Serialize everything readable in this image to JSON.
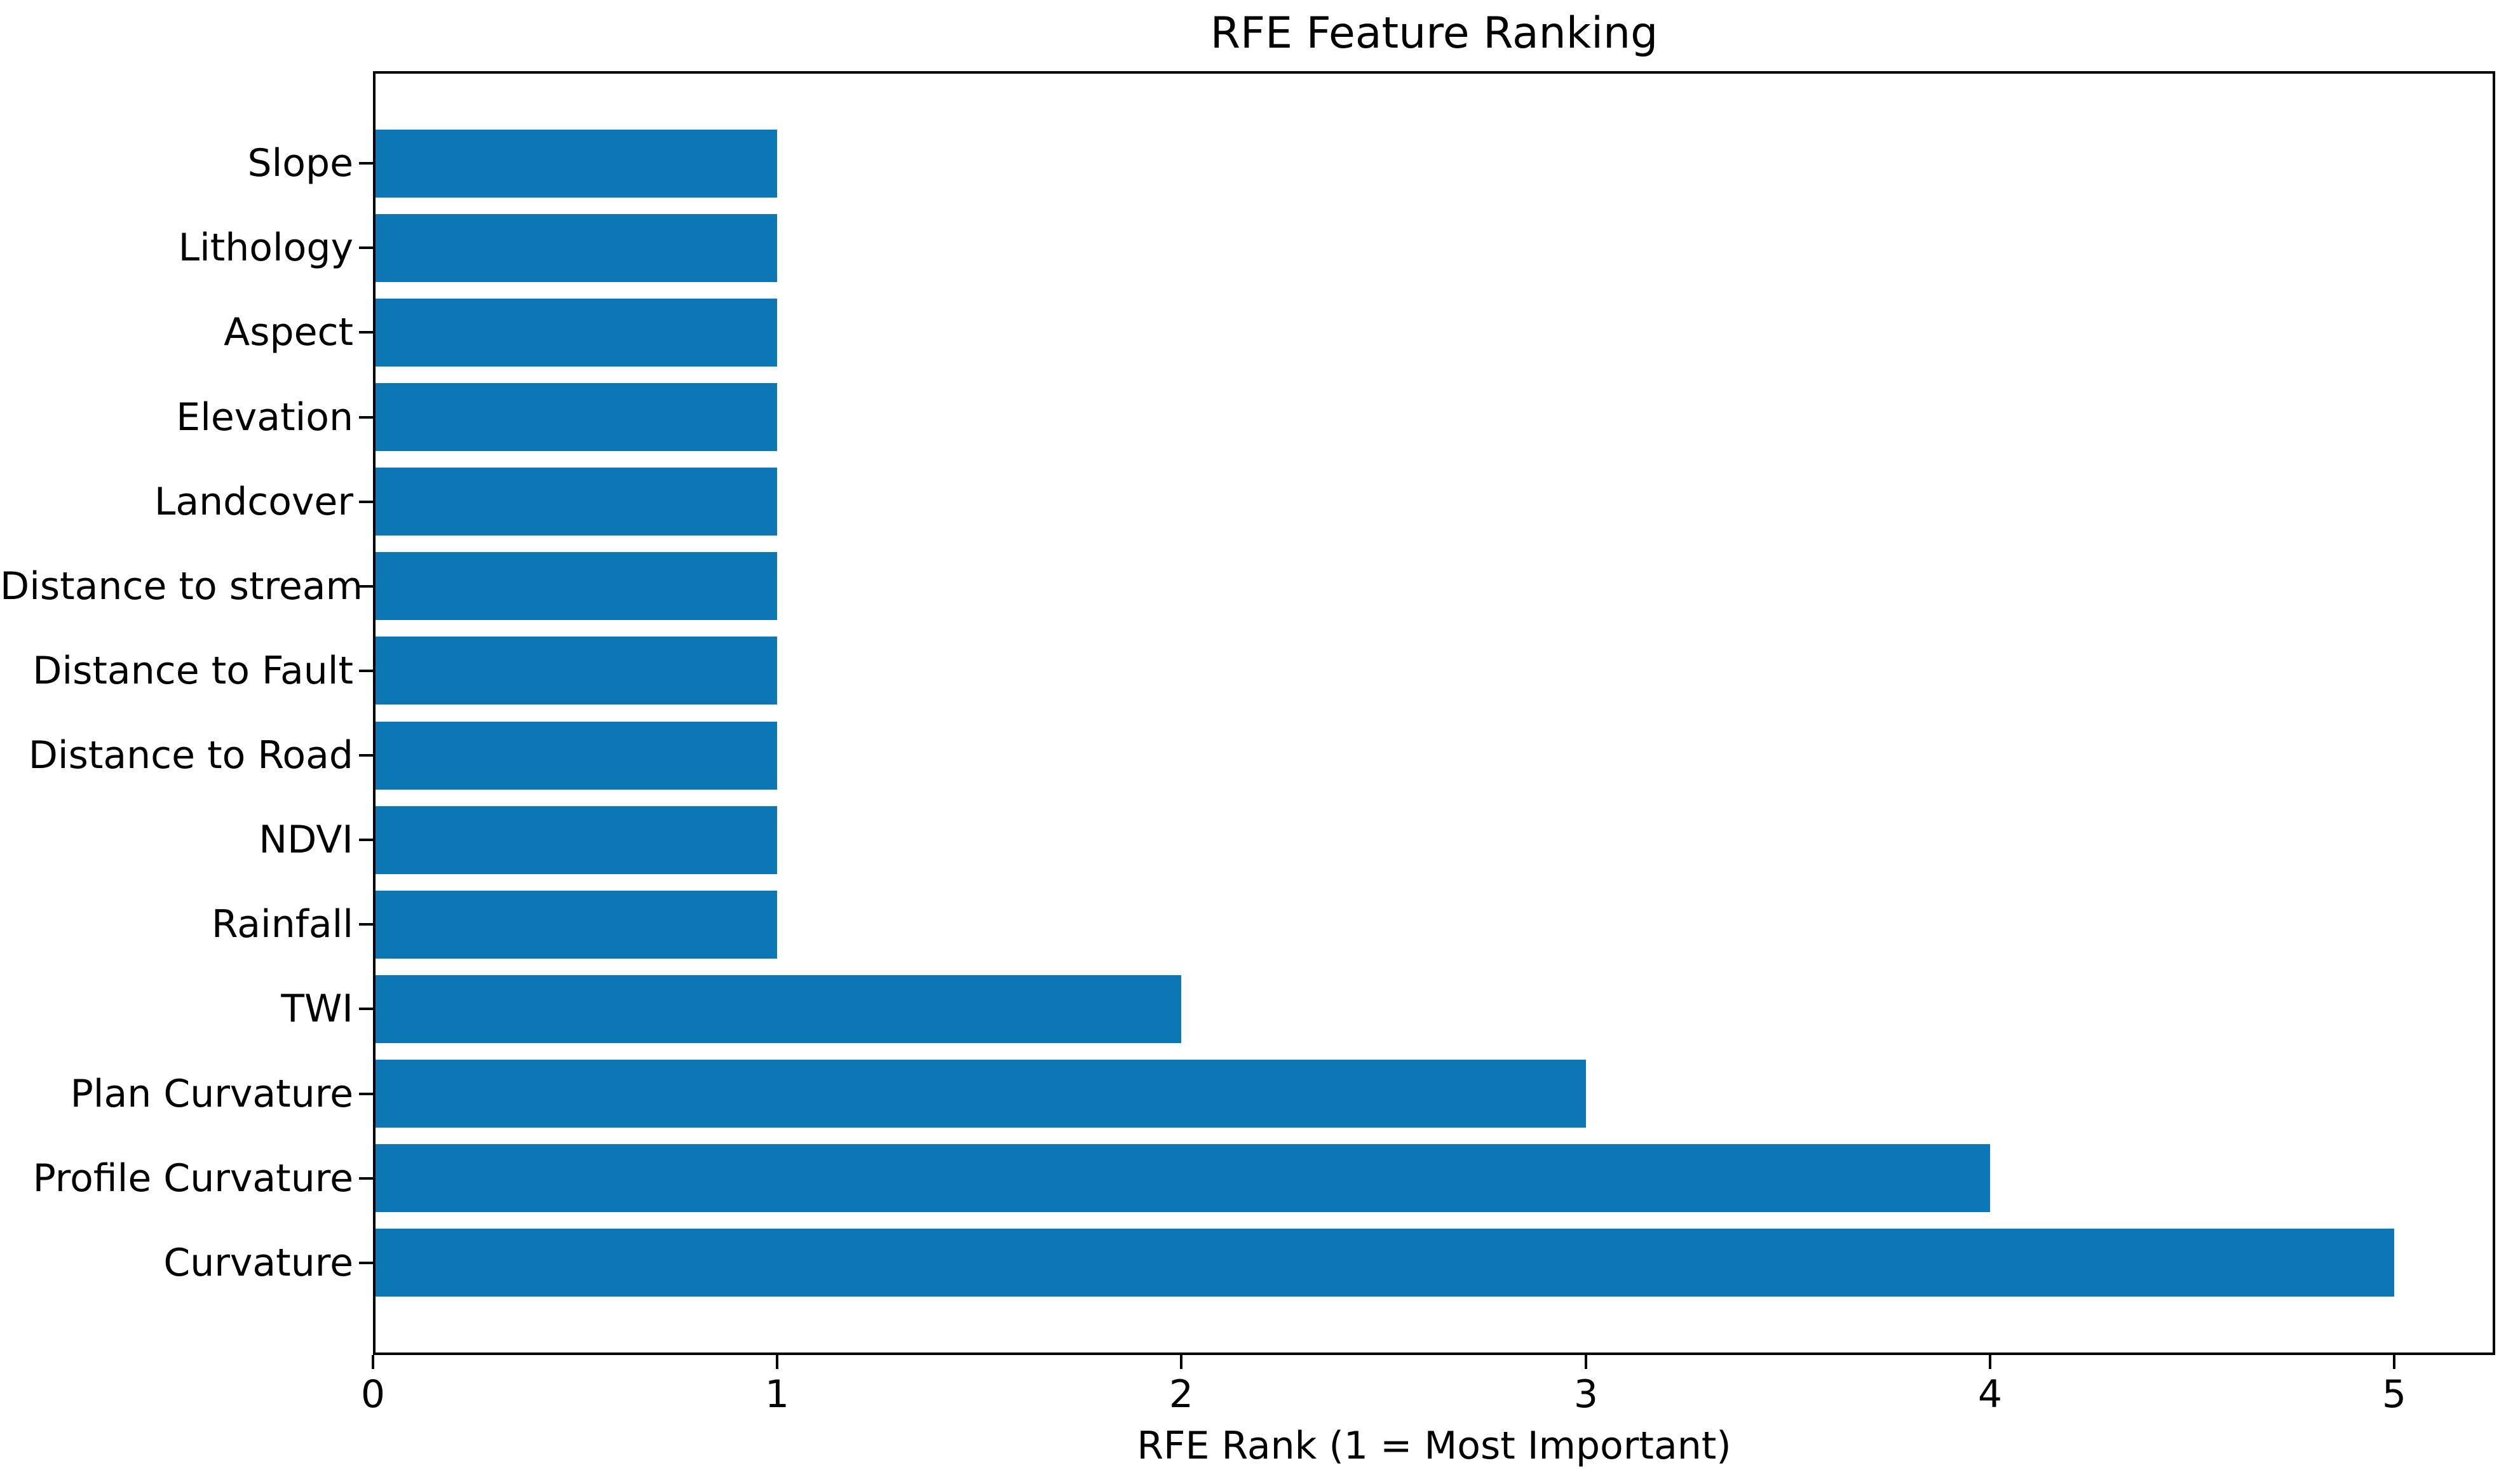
{
  "chart_data": {
    "type": "bar",
    "orientation": "horizontal",
    "title": "RFE Feature Ranking",
    "xlabel": "RFE Rank (1 = Most Important)",
    "ylabel": "",
    "categories": [
      "Slope",
      "Lithology",
      "Aspect",
      "Elevation",
      "Landcover",
      "Distance to stream",
      "Distance to Fault",
      "Distance to Road",
      "NDVI",
      "Rainfall",
      "TWI",
      "Plan Curvature",
      "Profile Curvature",
      "Curvature"
    ],
    "values": [
      1,
      1,
      1,
      1,
      1,
      1,
      1,
      1,
      1,
      1,
      2,
      3,
      4,
      5
    ],
    "x_ticks": [
      0,
      1,
      2,
      3,
      4,
      5
    ],
    "xlim": [
      0,
      5.25
    ],
    "bar_color": "#0d76b4",
    "text_color": "#000000",
    "background_color": "#ffffff",
    "grid": false,
    "legend": null
  }
}
